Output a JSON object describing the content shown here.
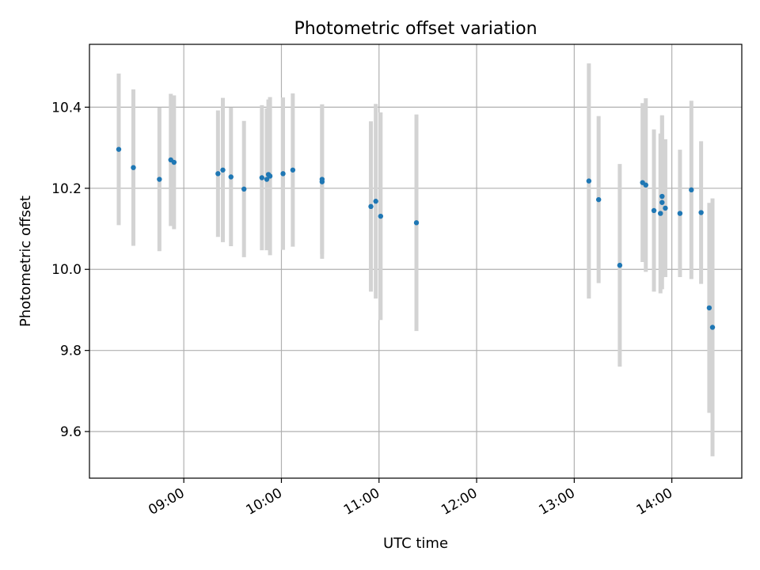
{
  "chart_data": {
    "type": "scatter",
    "title": "Photometric offset variation",
    "xlabel": "UTC time",
    "ylabel": "Photometric offset",
    "x_is_time": true,
    "xlim": [
      "08:02",
      "14:43"
    ],
    "ylim": [
      9.485,
      10.555
    ],
    "xticks": [
      "09:00",
      "10:00",
      "11:00",
      "12:00",
      "13:00",
      "14:00"
    ],
    "yticks": [
      "9.6",
      "9.8",
      "10.0",
      "10.2",
      "10.4"
    ],
    "grid": true,
    "colors": {
      "point": "#1f77b4",
      "errorbar": "#d3d3d3",
      "grid": "#b0b0b0"
    },
    "series": [
      {
        "points": [
          {
            "x": "08:20",
            "y": 10.296,
            "err": 0.187
          },
          {
            "x": "08:29",
            "y": 10.251,
            "err": 0.193
          },
          {
            "x": "08:45",
            "y": 10.222,
            "err": 0.177
          },
          {
            "x": "08:52",
            "y": 10.27,
            "err": 0.163
          },
          {
            "x": "08:54",
            "y": 10.264,
            "err": 0.165
          },
          {
            "x": "09:21",
            "y": 10.236,
            "err": 0.156
          },
          {
            "x": "09:24",
            "y": 10.245,
            "err": 0.178
          },
          {
            "x": "09:29",
            "y": 10.228,
            "err": 0.171
          },
          {
            "x": "09:37",
            "y": 10.198,
            "err": 0.168
          },
          {
            "x": "09:48",
            "y": 10.226,
            "err": 0.179
          },
          {
            "x": "09:51",
            "y": 10.222,
            "err": 0.175
          },
          {
            "x": "09:52",
            "y": 10.234,
            "err": 0.185
          },
          {
            "x": "09:53",
            "y": 10.23,
            "err": 0.195
          },
          {
            "x": "10:01",
            "y": 10.236,
            "err": 0.188
          },
          {
            "x": "10:07",
            "y": 10.245,
            "err": 0.189
          },
          {
            "x": "10:25",
            "y": 10.216,
            "err": 0.19
          },
          {
            "x": "10:25",
            "y": 10.222,
            "err": 0.185
          },
          {
            "x": "10:55",
            "y": 10.155,
            "err": 0.21
          },
          {
            "x": "10:58",
            "y": 10.168,
            "err": 0.24
          },
          {
            "x": "11:01",
            "y": 10.131,
            "err": 0.256
          },
          {
            "x": "11:23",
            "y": 10.115,
            "err": 0.267
          },
          {
            "x": "13:09",
            "y": 10.218,
            "err": 0.29
          },
          {
            "x": "13:15",
            "y": 10.172,
            "err": 0.206
          },
          {
            "x": "13:28",
            "y": 10.01,
            "err": 0.25
          },
          {
            "x": "13:42",
            "y": 10.214,
            "err": 0.196
          },
          {
            "x": "13:44",
            "y": 10.208,
            "err": 0.214
          },
          {
            "x": "13:49",
            "y": 10.145,
            "err": 0.2
          },
          {
            "x": "13:53",
            "y": 10.138,
            "err": 0.197
          },
          {
            "x": "13:54",
            "y": 10.165,
            "err": 0.214
          },
          {
            "x": "13:54",
            "y": 10.18,
            "err": 0.2
          },
          {
            "x": "13:56",
            "y": 10.151,
            "err": 0.17
          },
          {
            "x": "14:05",
            "y": 10.138,
            "err": 0.157
          },
          {
            "x": "14:12",
            "y": 10.196,
            "err": 0.22
          },
          {
            "x": "14:18",
            "y": 10.14,
            "err": 0.176
          },
          {
            "x": "14:23",
            "y": 9.905,
            "err": 0.259
          },
          {
            "x": "14:25",
            "y": 9.857,
            "err": 0.318
          }
        ]
      }
    ]
  }
}
